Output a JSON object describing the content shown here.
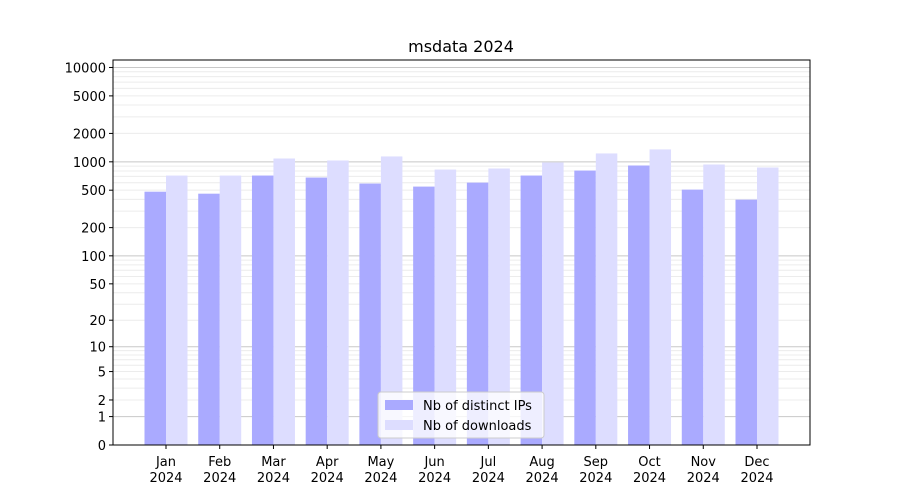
{
  "chart_data": {
    "type": "bar",
    "title": "msdata 2024",
    "categories": [
      "Jan\n2024",
      "Feb\n2024",
      "Mar\n2024",
      "Apr\n2024",
      "May\n2024",
      "Jun\n2024",
      "Jul\n2024",
      "Aug\n2024",
      "Sep\n2024",
      "Oct\n2024",
      "Nov\n2024",
      "Dec\n2024"
    ],
    "series": [
      {
        "name": "Nb of distinct IPs",
        "color": "#aaaaff",
        "values": [
          482,
          459,
          715,
          681,
          588,
          546,
          602,
          715,
          808,
          914,
          507,
          397
        ]
      },
      {
        "name": "Nb of downloads",
        "color": "#ddddff",
        "values": [
          715,
          715,
          1085,
          1033,
          1140,
          828,
          849,
          984,
          1227,
          1354,
          936,
          870
        ]
      }
    ],
    "yscale": "log(1+y)",
    "yticks": [
      0,
      1,
      2,
      5,
      10,
      20,
      50,
      100,
      200,
      500,
      1000,
      2000,
      5000,
      10000
    ],
    "ylim": [
      0,
      12000
    ],
    "grid": true,
    "legend": "lower center",
    "xlabel": "",
    "ylabel": ""
  }
}
